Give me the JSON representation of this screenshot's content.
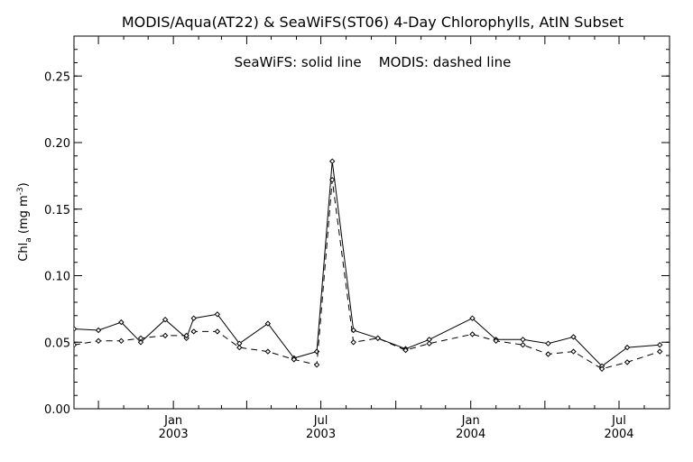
{
  "chart_data": {
    "type": "line",
    "title": "MODIS/Aqua(AT22) & SeaWiFS(ST06) 4-Day Chlorophylls, AtIN Subset",
    "legend_text": "SeaWiFS: solid line    MODIS: dashed line",
    "ylabel": {
      "main": "Chl",
      "sub": "a",
      "units_open": " (mg m",
      "units_sup": "-3",
      "units_close": ")"
    },
    "x_axis": {
      "type": "date",
      "range": [
        "2002-09-01",
        "2004-09-01"
      ],
      "ticks": [
        {
          "date": "2003-01-01",
          "month": "Jan",
          "year": "2003"
        },
        {
          "date": "2003-07-01",
          "month": "Jul",
          "year": "2003"
        },
        {
          "date": "2004-01-01",
          "month": "Jan",
          "year": "2004"
        },
        {
          "date": "2004-07-01",
          "month": "Jul",
          "year": "2004"
        }
      ]
    },
    "ylim": [
      0,
      0.28
    ],
    "yticks": [
      {
        "value": 0.0,
        "label": "0.00"
      },
      {
        "value": 0.05,
        "label": "0.05"
      },
      {
        "value": 0.1,
        "label": "0.10"
      },
      {
        "value": 0.15,
        "label": "0.15"
      },
      {
        "value": 0.2,
        "label": "0.20"
      },
      {
        "value": 0.25,
        "label": "0.25"
      }
    ],
    "grid": false,
    "series": [
      {
        "style": "solid",
        "color": "#000000",
        "points": [
          {
            "x": "2002-09-01",
            "y": 0.06
          },
          {
            "x": "2002-10-01",
            "y": 0.059
          },
          {
            "x": "2002-10-29",
            "y": 0.065
          },
          {
            "x": "2002-11-22",
            "y": 0.05
          },
          {
            "x": "2002-12-22",
            "y": 0.067
          },
          {
            "x": "2003-01-17",
            "y": 0.053
          },
          {
            "x": "2003-01-26",
            "y": 0.068
          },
          {
            "x": "2003-02-24",
            "y": 0.071
          },
          {
            "x": "2003-03-23",
            "y": 0.049
          },
          {
            "x": "2003-04-27",
            "y": 0.064
          },
          {
            "x": "2003-05-29",
            "y": 0.038
          },
          {
            "x": "2003-06-26",
            "y": 0.043
          },
          {
            "x": "2003-07-15",
            "y": 0.186
          },
          {
            "x": "2003-08-10",
            "y": 0.059
          },
          {
            "x": "2003-09-09",
            "y": 0.053
          },
          {
            "x": "2003-10-13",
            "y": 0.045
          },
          {
            "x": "2003-11-11",
            "y": 0.052
          },
          {
            "x": "2004-01-03",
            "y": 0.068
          },
          {
            "x": "2004-02-01",
            "y": 0.052
          },
          {
            "x": "2004-03-05",
            "y": 0.052
          },
          {
            "x": "2004-04-05",
            "y": 0.049
          },
          {
            "x": "2004-05-06",
            "y": 0.054
          },
          {
            "x": "2004-06-10",
            "y": 0.032
          },
          {
            "x": "2004-07-11",
            "y": 0.046
          },
          {
            "x": "2004-08-20",
            "y": 0.048
          }
        ]
      },
      {
        "style": "dashed",
        "color": "#000000",
        "points": [
          {
            "x": "2002-09-01",
            "y": 0.048
          },
          {
            "x": "2002-10-01",
            "y": 0.051
          },
          {
            "x": "2002-10-29",
            "y": 0.051
          },
          {
            "x": "2002-11-22",
            "y": 0.053
          },
          {
            "x": "2002-12-22",
            "y": 0.055
          },
          {
            "x": "2003-01-17",
            "y": 0.055
          },
          {
            "x": "2003-01-26",
            "y": 0.058
          },
          {
            "x": "2003-02-24",
            "y": 0.058
          },
          {
            "x": "2003-03-23",
            "y": 0.046
          },
          {
            "x": "2003-04-27",
            "y": 0.043
          },
          {
            "x": "2003-05-29",
            "y": 0.037
          },
          {
            "x": "2003-06-26",
            "y": 0.033
          },
          {
            "x": "2003-07-15",
            "y": 0.172
          },
          {
            "x": "2003-08-10",
            "y": 0.05
          },
          {
            "x": "2003-09-09",
            "y": 0.053
          },
          {
            "x": "2003-10-13",
            "y": 0.044
          },
          {
            "x": "2003-11-11",
            "y": 0.049
          },
          {
            "x": "2004-01-03",
            "y": 0.056
          },
          {
            "x": "2004-02-01",
            "y": 0.051
          },
          {
            "x": "2004-03-05",
            "y": 0.048
          },
          {
            "x": "2004-04-05",
            "y": 0.041
          },
          {
            "x": "2004-05-06",
            "y": 0.043
          },
          {
            "x": "2004-06-10",
            "y": 0.03
          },
          {
            "x": "2004-07-11",
            "y": 0.035
          },
          {
            "x": "2004-08-20",
            "y": 0.043
          }
        ]
      }
    ]
  }
}
